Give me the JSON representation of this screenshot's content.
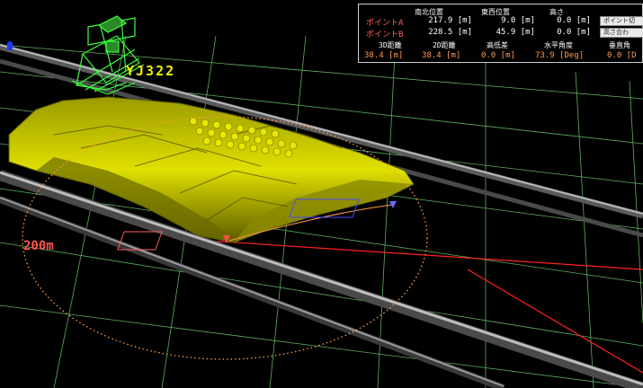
{
  "scene": {
    "machine_label": "YJ322",
    "radius_label": "200m"
  },
  "panel": {
    "headers": {
      "north_south": "南北位置",
      "east_west": "東西位置",
      "height": "高さ"
    },
    "point_a": {
      "label": "ポイントA",
      "ns": "217.9 [m]",
      "ew": "9.0 [m]",
      "h": "0.0 [m]",
      "button": "ポイント切"
    },
    "point_b": {
      "label": "ポイントB",
      "ns": "228.5 [m]",
      "ew": "45.9 [m]",
      "h": "0.0 [m]",
      "button": "高さ合わ"
    },
    "measures": {
      "dist3d_label": "3D距離",
      "dist3d": "38.4 [m]",
      "dist2d_label": "2D距離",
      "dist2d": "38.4 [m]",
      "elev_label": "高低差",
      "elev": "0.0 [m]",
      "hangle_label": "水平角度",
      "hangle": "73.9 [Deg]",
      "vangle_label": "垂直角",
      "vangle": "0.0 [D"
    }
  },
  "colors": {
    "pile": "#c8c800",
    "grid": "#7dd87d",
    "rail": "#8a8a8a",
    "machine": "#3cff3c",
    "circle": "#ff9a4a",
    "axis": "#ff2020"
  }
}
